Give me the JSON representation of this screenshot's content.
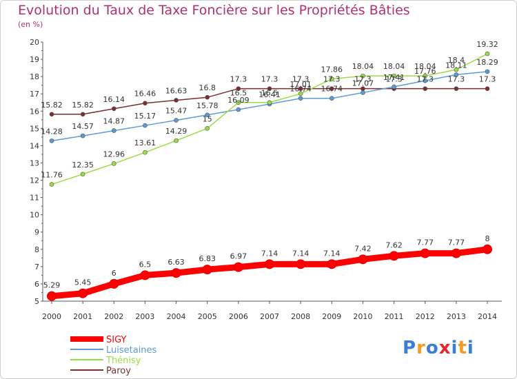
{
  "header": {
    "title": "Evolution du Taux de Taxe Foncière sur les Propriétés Bâties",
    "unit": "(en %)"
  },
  "brand": {
    "logo_text": "Proxiti"
  },
  "chart_data": {
    "type": "line",
    "title": "Evolution du Taux de Taxe Foncière sur les Propriétés Bâties",
    "ylabel": "(en %)",
    "xlabel": "",
    "ylim": [
      5,
      20
    ],
    "yticks": [
      5,
      6,
      7,
      8,
      9,
      10,
      11,
      12,
      13,
      14,
      15,
      16,
      17,
      18,
      19,
      20
    ],
    "grid": false,
    "legend_position": "bottom-left",
    "x": [
      "2000",
      "2001",
      "2002",
      "2003",
      "2004",
      "2005",
      "2006",
      "2007",
      "2008",
      "2009",
      "2010",
      "2011",
      "2012",
      "2013",
      "2014"
    ],
    "series": [
      {
        "name": "SIGY",
        "color": "#ff0000",
        "emphasis": true,
        "values": [
          5.29,
          5.45,
          6,
          6.5,
          6.63,
          6.83,
          6.97,
          7.14,
          7.14,
          7.14,
          7.42,
          7.62,
          7.77,
          7.77,
          8
        ],
        "labels": [
          "5.29",
          "5.45",
          "6",
          "6.5",
          "6.63",
          "6.83",
          "6.97",
          "7.14",
          "7.14",
          "7.14",
          "7.42",
          "7.62",
          "7.77",
          "7.77",
          "8"
        ]
      },
      {
        "name": "Luisetaines",
        "color": "#5b9bd5",
        "values": [
          14.28,
          14.57,
          14.87,
          15.17,
          15.47,
          15.78,
          16.09,
          16.41,
          16.74,
          16.74,
          17.07,
          17.41,
          17.76,
          18.11,
          18.29
        ],
        "labels": [
          "14.28",
          "14.57",
          "14.87",
          "15.17",
          "15.47",
          "15.78",
          "16.09",
          "16.41",
          "16.74",
          "16.74",
          "17.07",
          "17.41",
          "17.76",
          "18.11",
          "18.29"
        ]
      },
      {
        "name": "Thénisy",
        "color": "#99dd44",
        "values": [
          11.76,
          12.35,
          12.96,
          13.61,
          14.29,
          15,
          16.5,
          16.5,
          17.01,
          17.86,
          18.04,
          18.04,
          18.04,
          18.4,
          19.32
        ],
        "labels": [
          "11.76",
          "12.35",
          "12.96",
          "13.61",
          "14.29",
          "15",
          "16.5",
          "16.5",
          "17.01",
          "17.86",
          "18.04",
          "18.04",
          "18.04",
          "18.4",
          "19.32"
        ]
      },
      {
        "name": "Paroy",
        "color": "#7a2e2e",
        "values": [
          15.82,
          15.82,
          16.14,
          16.46,
          16.63,
          16.8,
          17.3,
          17.3,
          17.3,
          17.3,
          17.3,
          17.3,
          17.3,
          17.3,
          17.3
        ],
        "labels": [
          "15.82",
          "15.82",
          "16.14",
          "16.46",
          "16.63",
          "16.8",
          "17.3",
          "17.3",
          "17.3",
          "17.3",
          "17.3",
          "17.3",
          "17.3",
          "17.3",
          "17.3"
        ]
      }
    ]
  }
}
